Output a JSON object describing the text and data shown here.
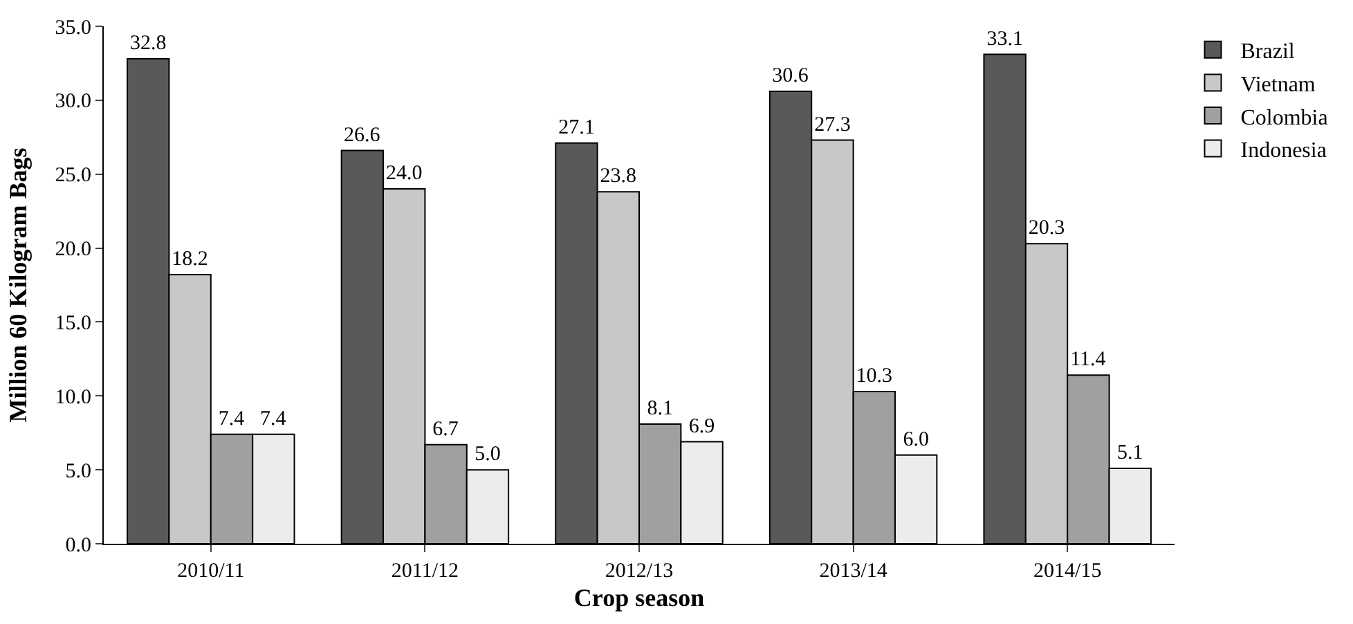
{
  "chart_data": {
    "type": "bar",
    "xlabel": "Crop season",
    "ylabel": "Million 60 Kilogram Bags",
    "categories": [
      "2010/11",
      "2011/12",
      "2012/13",
      "2013/14",
      "2014/15"
    ],
    "series": [
      {
        "name": "Brazil",
        "color": "#595959",
        "values": [
          32.8,
          26.6,
          27.1,
          30.6,
          33.1
        ],
        "value_labels": [
          "32.8",
          "26.6",
          "27.1",
          "30.6",
          "33.1"
        ]
      },
      {
        "name": "Vietnam",
        "color": "#c8c8c8",
        "values": [
          18.2,
          24.0,
          23.8,
          27.3,
          20.3
        ],
        "value_labels": [
          "18.2",
          "24.0",
          "23.8",
          "27.3",
          "20.3"
        ]
      },
      {
        "name": "Colombia",
        "color": "#a0a0a0",
        "values": [
          7.4,
          6.7,
          8.1,
          10.3,
          11.4
        ],
        "value_labels": [
          "7.4",
          "6.7",
          "8.1",
          "10.3",
          "11.4"
        ]
      },
      {
        "name": "Indonesia",
        "color": "#ececec",
        "values": [
          7.4,
          5.0,
          6.9,
          6.0,
          5.1
        ],
        "value_labels": [
          "7.4",
          "5.0",
          "6.9",
          "6.0",
          "5.1"
        ]
      }
    ],
    "ylim": [
      0,
      35
    ],
    "yticks": [
      {
        "value": 0,
        "label": "0.0"
      },
      {
        "value": 5,
        "label": "5.0"
      },
      {
        "value": 10,
        "label": "10.0"
      },
      {
        "value": 15,
        "label": "15.0"
      },
      {
        "value": 20,
        "label": "20.0"
      },
      {
        "value": 25,
        "label": "25.0"
      },
      {
        "value": 30,
        "label": "30.0"
      },
      {
        "value": 35,
        "label": "35.0"
      }
    ],
    "legend": "top right"
  }
}
